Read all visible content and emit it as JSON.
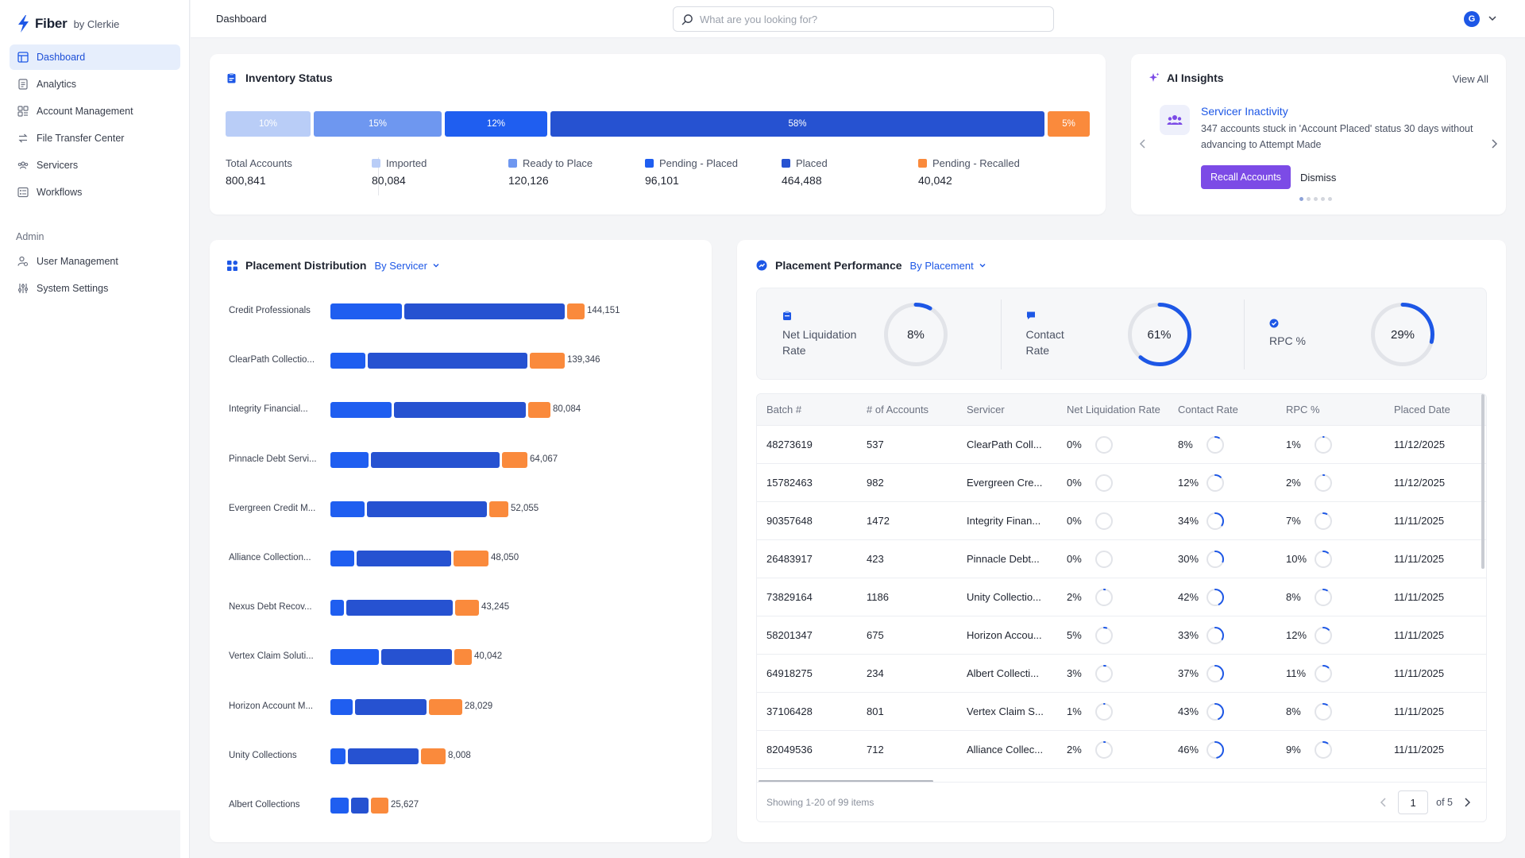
{
  "brand": {
    "name": "Fiber",
    "sub": "by Clerkie"
  },
  "nav": {
    "items": [
      {
        "label": "Dashboard",
        "icon": "dashboard-icon",
        "active": true
      },
      {
        "label": "Analytics",
        "icon": "analytics-icon",
        "active": false
      },
      {
        "label": "Account Management",
        "icon": "accounts-icon",
        "active": false
      },
      {
        "label": "File Transfer Center",
        "icon": "transfer-icon",
        "active": false
      },
      {
        "label": "Servicers",
        "icon": "servicers-icon",
        "active": false
      },
      {
        "label": "Workflows",
        "icon": "workflows-icon",
        "active": false
      }
    ],
    "section_label": "Admin",
    "admin_items": [
      {
        "label": "User Management",
        "icon": "user-management-icon"
      },
      {
        "label": "System Settings",
        "icon": "settings-icon"
      }
    ]
  },
  "header": {
    "title": "Dashboard",
    "search_placeholder": "What are you looking for?",
    "avatar_initial": "G"
  },
  "colors": {
    "accent": "#1d57e6",
    "imported": "#b9cdf7",
    "ready": "#6e97f0",
    "pending_placed": "#1f5ef0",
    "placed": "#2652d1",
    "pending_recalled": "#fa8a3c",
    "ai_button": "#7c4be6"
  },
  "inventory": {
    "title": "Inventory Status",
    "segments": [
      {
        "label": "10%",
        "pct": 10,
        "color": "#b9cdf7"
      },
      {
        "label": "15%",
        "pct": 15,
        "color": "#6e97f0"
      },
      {
        "label": "12%",
        "pct": 12,
        "color": "#1f5ef0"
      },
      {
        "label": "58%",
        "pct": 58,
        "color": "#2652d1"
      },
      {
        "label": "5%",
        "pct": 5,
        "color": "#fa8a3c"
      }
    ],
    "total": {
      "label": "Total Accounts",
      "value": "800,841"
    },
    "stats": [
      {
        "label": "Imported",
        "value": "80,084",
        "color": "#b9cdf7"
      },
      {
        "label": "Ready to Place",
        "value": "120,126",
        "color": "#6e97f0"
      },
      {
        "label": "Pending - Placed",
        "value": "96,101",
        "color": "#1f5ef0"
      },
      {
        "label": "Placed",
        "value": "464,488",
        "color": "#2652d1"
      },
      {
        "label": "Pending - Recalled",
        "value": "40,042",
        "color": "#fa8a3c"
      }
    ]
  },
  "ai_insights": {
    "title": "AI Insights",
    "view_all": "View All",
    "insight_title": "Servicer Inactivity",
    "insight_desc": "347 accounts stuck in 'Account Placed' status 30 days without advancing to Attempt Made",
    "primary_action": "Recall Accounts",
    "secondary_action": "Dismiss",
    "page_count": 5,
    "current_page": 1
  },
  "distribution": {
    "title": "Placement Distribution",
    "dropdown": "By Servicer",
    "rows": [
      {
        "name": "Credit Professionals",
        "value": "144,151",
        "parts": [
          90,
          202,
          22
        ]
      },
      {
        "name": "ClearPath Collectio...",
        "value": "139,346",
        "parts": [
          44,
          201,
          44
        ]
      },
      {
        "name": "Integrity Financial...",
        "value": "80,084",
        "parts": [
          77,
          166,
          28
        ]
      },
      {
        "name": "Pinnacle Debt Servi...",
        "value": "64,067",
        "parts": [
          48,
          162,
          32
        ]
      },
      {
        "name": "Evergreen Credit M...",
        "value": "52,055",
        "parts": [
          43,
          151,
          24
        ]
      },
      {
        "name": "Alliance Collection...",
        "value": "48,050",
        "parts": [
          30,
          119,
          44
        ]
      },
      {
        "name": "Nexus Debt Recov...",
        "value": "43,245",
        "parts": [
          17,
          134,
          30
        ]
      },
      {
        "name": "Vertex Claim Soluti...",
        "value": "40,042",
        "parts": [
          61,
          89,
          22
        ]
      },
      {
        "name": "Horizon Account M...",
        "value": "28,029",
        "parts": [
          28,
          90,
          42
        ]
      },
      {
        "name": "Unity Collections",
        "value": "8,008",
        "parts": [
          19,
          89,
          31
        ]
      },
      {
        "name": "Albert Collections",
        "value": "25,627",
        "parts": [
          23,
          22,
          22
        ]
      }
    ]
  },
  "performance": {
    "title": "Placement Performance",
    "dropdown": "By Placement",
    "kpis": [
      {
        "label": "Net Liquidation Rate",
        "value": "8%",
        "pct": 8,
        "icon": "clipboard-icon"
      },
      {
        "label": "Contact Rate",
        "value": "61%",
        "pct": 61,
        "icon": "chat-icon"
      },
      {
        "label": "RPC %",
        "value": "29%",
        "pct": 29,
        "icon": "check-badge-icon"
      }
    ],
    "columns": [
      "Batch #",
      "# of Accounts",
      "Servicer",
      "Net Liquidation Rate",
      "Contact Rate",
      "RPC %",
      "Placed Date"
    ],
    "rows": [
      {
        "batch": "48273619",
        "accounts": "537",
        "servicer": "ClearPath Coll...",
        "nlr": "0%",
        "nlr_pct": 0,
        "contact": "8%",
        "contact_pct": 8,
        "rpc": "1%",
        "rpc_pct": 1,
        "date": "11/12/2025"
      },
      {
        "batch": "15782463",
        "accounts": "982",
        "servicer": "Evergreen Cre...",
        "nlr": "0%",
        "nlr_pct": 0,
        "contact": "12%",
        "contact_pct": 12,
        "rpc": "2%",
        "rpc_pct": 2,
        "date": "11/12/2025"
      },
      {
        "batch": "90357648",
        "accounts": "1472",
        "servicer": "Integrity Finan...",
        "nlr": "0%",
        "nlr_pct": 0,
        "contact": "34%",
        "contact_pct": 34,
        "rpc": "7%",
        "rpc_pct": 7,
        "date": "11/11/2025"
      },
      {
        "batch": "26483917",
        "accounts": "423",
        "servicer": "Pinnacle Debt...",
        "nlr": "0%",
        "nlr_pct": 0,
        "contact": "30%",
        "contact_pct": 30,
        "rpc": "10%",
        "rpc_pct": 10,
        "date": "11/11/2025"
      },
      {
        "batch": "73829164",
        "accounts": "1186",
        "servicer": "Unity Collectio...",
        "nlr": "2%",
        "nlr_pct": 2,
        "contact": "42%",
        "contact_pct": 42,
        "rpc": "8%",
        "rpc_pct": 8,
        "date": "11/11/2025"
      },
      {
        "batch": "58201347",
        "accounts": "675",
        "servicer": "Horizon Accou...",
        "nlr": "5%",
        "nlr_pct": 5,
        "contact": "33%",
        "contact_pct": 33,
        "rpc": "12%",
        "rpc_pct": 12,
        "date": "11/11/2025"
      },
      {
        "batch": "64918275",
        "accounts": "234",
        "servicer": "Albert Collecti...",
        "nlr": "3%",
        "nlr_pct": 3,
        "contact": "37%",
        "contact_pct": 37,
        "rpc": "11%",
        "rpc_pct": 11,
        "date": "11/11/2025"
      },
      {
        "batch": "37106428",
        "accounts": "801",
        "servicer": "Vertex Claim S...",
        "nlr": "1%",
        "nlr_pct": 1,
        "contact": "43%",
        "contact_pct": 43,
        "rpc": "8%",
        "rpc_pct": 8,
        "date": "11/11/2025"
      },
      {
        "batch": "82049536",
        "accounts": "712",
        "servicer": "Alliance Collec...",
        "nlr": "2%",
        "nlr_pct": 2,
        "contact": "46%",
        "contact_pct": 46,
        "rpc": "9%",
        "rpc_pct": 9,
        "date": "11/11/2025"
      }
    ],
    "footer": "Showing 1-20 of 99 items",
    "page": "1",
    "page_of": "of 5"
  }
}
